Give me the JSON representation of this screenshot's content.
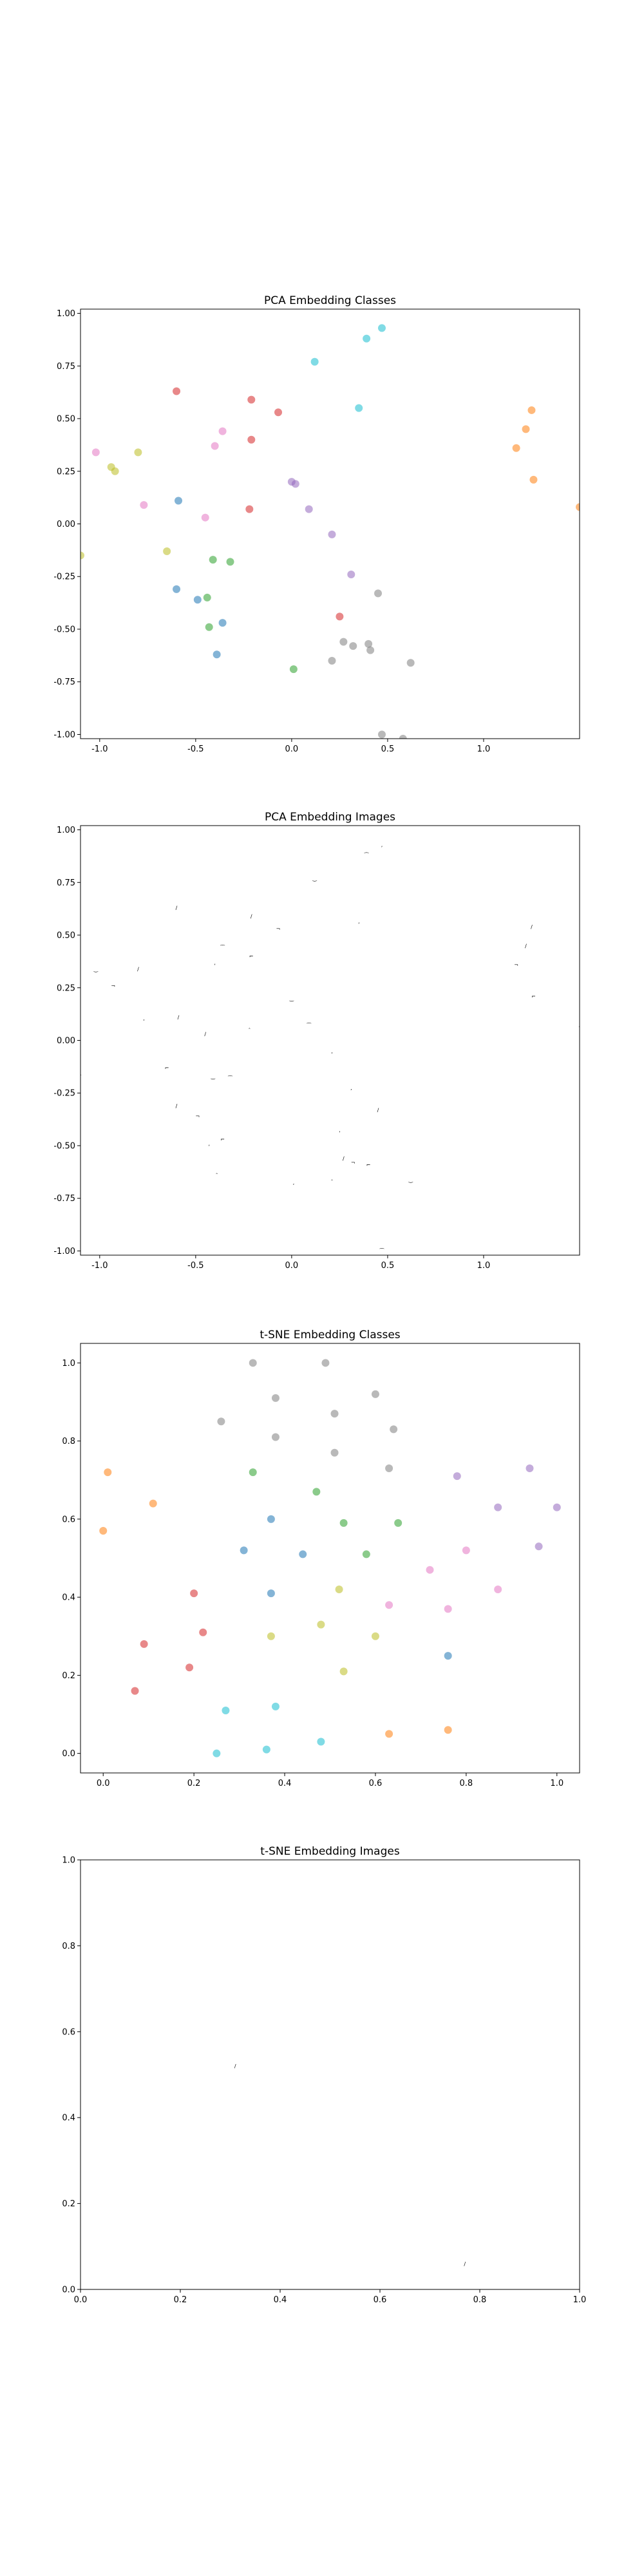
{
  "colors": {
    "c0": "#1f77b4",
    "c1": "#ff7f0e",
    "c2": "#2ca02c",
    "c3": "#d62728",
    "c4": "#9467bd",
    "c5": "#8c564b",
    "c6": "#e377c2",
    "c7": "#7f7f7f",
    "c8": "#bcbd22",
    "c9": "#17becf"
  },
  "chart_data": [
    {
      "type": "scatter",
      "title": "PCA Embedding Classes",
      "xlabel": "",
      "ylabel": "",
      "xlim": [
        -1.1,
        1.5
      ],
      "ylim": [
        -1.02,
        1.02
      ],
      "xticks": [
        "-1.0",
        "-0.5",
        "0.0",
        "0.5",
        "1.0"
      ],
      "xtick_values": [
        -1.0,
        -0.5,
        0.0,
        0.5,
        1.0
      ],
      "yticks": [
        "-1.00",
        "-0.75",
        "-0.50",
        "-0.25",
        "0.00",
        "0.25",
        "0.50",
        "0.75",
        "1.00"
      ],
      "ytick_values": [
        -1.0,
        -0.75,
        -0.5,
        -0.25,
        0.0,
        0.25,
        0.5,
        0.75,
        1.0
      ],
      "grid": false,
      "points": [
        {
          "x": -0.6,
          "y": 0.63,
          "c": "c3"
        },
        {
          "x": -0.21,
          "y": 0.59,
          "c": "c3"
        },
        {
          "x": -0.07,
          "y": 0.53,
          "c": "c3"
        },
        {
          "x": -0.21,
          "y": 0.4,
          "c": "c3"
        },
        {
          "x": -0.22,
          "y": 0.07,
          "c": "c3"
        },
        {
          "x": 0.12,
          "y": 0.77,
          "c": "c9"
        },
        {
          "x": 0.39,
          "y": 0.88,
          "c": "c9"
        },
        {
          "x": 0.47,
          "y": 0.93,
          "c": "c9"
        },
        {
          "x": 0.35,
          "y": 0.55,
          "c": "c9"
        },
        {
          "x": 1.25,
          "y": 0.54,
          "c": "c1"
        },
        {
          "x": 1.22,
          "y": 0.45,
          "c": "c1"
        },
        {
          "x": 1.17,
          "y": 0.36,
          "c": "c1"
        },
        {
          "x": 1.26,
          "y": 0.21,
          "c": "c1"
        },
        {
          "x": 1.5,
          "y": 0.08,
          "c": "c1"
        },
        {
          "x": -1.02,
          "y": 0.34,
          "c": "c6"
        },
        {
          "x": -0.36,
          "y": 0.44,
          "c": "c6"
        },
        {
          "x": -0.4,
          "y": 0.37,
          "c": "c6"
        },
        {
          "x": -0.77,
          "y": 0.09,
          "c": "c6"
        },
        {
          "x": -0.45,
          "y": 0.03,
          "c": "c6"
        },
        {
          "x": -0.8,
          "y": 0.34,
          "c": "c8"
        },
        {
          "x": -0.94,
          "y": 0.27,
          "c": "c8"
        },
        {
          "x": -0.92,
          "y": 0.25,
          "c": "c8"
        },
        {
          "x": -0.65,
          "y": -0.13,
          "c": "c8"
        },
        {
          "x": -1.1,
          "y": -0.15,
          "c": "c8"
        },
        {
          "x": 0.0,
          "y": 0.2,
          "c": "c4"
        },
        {
          "x": 0.02,
          "y": 0.19,
          "c": "c4"
        },
        {
          "x": 0.09,
          "y": 0.07,
          "c": "c4"
        },
        {
          "x": 0.21,
          "y": -0.05,
          "c": "c4"
        },
        {
          "x": 0.31,
          "y": -0.24,
          "c": "c4"
        },
        {
          "x": -0.59,
          "y": 0.11,
          "c": "c0"
        },
        {
          "x": -0.6,
          "y": -0.31,
          "c": "c0"
        },
        {
          "x": -0.49,
          "y": -0.36,
          "c": "c0"
        },
        {
          "x": -0.36,
          "y": -0.47,
          "c": "c0"
        },
        {
          "x": -0.39,
          "y": -0.62,
          "c": "c0"
        },
        {
          "x": -0.41,
          "y": -0.17,
          "c": "c2"
        },
        {
          "x": -0.32,
          "y": -0.18,
          "c": "c2"
        },
        {
          "x": -0.44,
          "y": -0.35,
          "c": "c2"
        },
        {
          "x": -0.43,
          "y": -0.49,
          "c": "c2"
        },
        {
          "x": 0.01,
          "y": -0.69,
          "c": "c2"
        },
        {
          "x": 0.45,
          "y": -0.33,
          "c": "c7"
        },
        {
          "x": 0.27,
          "y": -0.56,
          "c": "c7"
        },
        {
          "x": 0.32,
          "y": -0.58,
          "c": "c7"
        },
        {
          "x": 0.4,
          "y": -0.57,
          "c": "c7"
        },
        {
          "x": 0.41,
          "y": -0.6,
          "c": "c7"
        },
        {
          "x": 0.21,
          "y": -0.65,
          "c": "c7"
        },
        {
          "x": 0.62,
          "y": -0.66,
          "c": "c7"
        },
        {
          "x": 0.47,
          "y": -1.0,
          "c": "c7"
        },
        {
          "x": 0.58,
          "y": -1.02,
          "c": "c7"
        },
        {
          "x": 0.25,
          "y": -0.44,
          "c": "c3"
        }
      ]
    },
    {
      "type": "scatter",
      "title": "PCA Embedding Images",
      "xlabel": "",
      "ylabel": "",
      "xlim": [
        -1.1,
        1.5
      ],
      "ylim": [
        -1.02,
        1.02
      ],
      "xticks": [
        "-1.0",
        "-0.5",
        "0.0",
        "0.5",
        "1.0"
      ],
      "xtick_values": [
        -1.0,
        -0.5,
        0.0,
        0.5,
        1.0
      ],
      "yticks": [
        "-1.00",
        "-0.75",
        "-0.50",
        "-0.25",
        "0.00",
        "0.25",
        "0.50",
        "0.75",
        "1.00"
      ],
      "ytick_values": [
        -1.0,
        -0.75,
        -0.5,
        -0.25,
        0.0,
        0.25,
        0.5,
        0.75,
        1.0
      ],
      "grid": false,
      "points": [
        {
          "x": -0.6,
          "y": 0.63
        },
        {
          "x": -0.21,
          "y": 0.59
        },
        {
          "x": -0.07,
          "y": 0.53
        },
        {
          "x": -0.21,
          "y": 0.4
        },
        {
          "x": -0.22,
          "y": 0.07
        },
        {
          "x": 0.12,
          "y": 0.77
        },
        {
          "x": 0.39,
          "y": 0.88
        },
        {
          "x": 0.47,
          "y": 0.93
        },
        {
          "x": 0.35,
          "y": 0.55
        },
        {
          "x": 1.25,
          "y": 0.54
        },
        {
          "x": 1.22,
          "y": 0.45
        },
        {
          "x": 1.17,
          "y": 0.36
        },
        {
          "x": 1.26,
          "y": 0.21
        },
        {
          "x": 1.5,
          "y": 0.08
        },
        {
          "x": -1.02,
          "y": 0.34
        },
        {
          "x": -0.36,
          "y": 0.44
        },
        {
          "x": -0.4,
          "y": 0.37
        },
        {
          "x": -0.77,
          "y": 0.09
        },
        {
          "x": -0.45,
          "y": 0.03
        },
        {
          "x": -0.8,
          "y": 0.34
        },
        {
          "x": -0.93,
          "y": 0.26
        },
        {
          "x": -0.65,
          "y": -0.13
        },
        {
          "x": -1.1,
          "y": -0.15
        },
        {
          "x": 0.0,
          "y": 0.2
        },
        {
          "x": 0.09,
          "y": 0.07
        },
        {
          "x": 0.21,
          "y": -0.05
        },
        {
          "x": 0.31,
          "y": -0.24
        },
        {
          "x": -0.59,
          "y": 0.11
        },
        {
          "x": -0.6,
          "y": -0.31
        },
        {
          "x": -0.49,
          "y": -0.36
        },
        {
          "x": -0.36,
          "y": -0.47
        },
        {
          "x": -0.39,
          "y": -0.62
        },
        {
          "x": -0.41,
          "y": -0.17
        },
        {
          "x": -0.32,
          "y": -0.18
        },
        {
          "x": -0.43,
          "y": -0.49
        },
        {
          "x": 0.01,
          "y": -0.69
        },
        {
          "x": 0.45,
          "y": -0.33
        },
        {
          "x": 0.27,
          "y": -0.56
        },
        {
          "x": 0.32,
          "y": -0.58
        },
        {
          "x": 0.4,
          "y": -0.59
        },
        {
          "x": 0.21,
          "y": -0.65
        },
        {
          "x": 0.62,
          "y": -0.66
        },
        {
          "x": 0.47,
          "y": -1.0
        },
        {
          "x": 0.58,
          "y": -1.02
        },
        {
          "x": 0.25,
          "y": -0.44
        }
      ]
    },
    {
      "type": "scatter",
      "title": "t-SNE Embedding Classes",
      "xlabel": "",
      "ylabel": "",
      "xlim": [
        -0.05,
        1.05
      ],
      "ylim": [
        -0.05,
        1.05
      ],
      "xticks": [
        "0.0",
        "0.2",
        "0.4",
        "0.6",
        "0.8",
        "1.0"
      ],
      "xtick_values": [
        0.0,
        0.2,
        0.4,
        0.6,
        0.8,
        1.0
      ],
      "yticks": [
        "0.0",
        "0.2",
        "0.4",
        "0.6",
        "0.8",
        "1.0"
      ],
      "ytick_values": [
        0.0,
        0.2,
        0.4,
        0.6,
        0.8,
        1.0
      ],
      "grid": false,
      "points": [
        {
          "x": 0.33,
          "y": 1.0,
          "c": "c7"
        },
        {
          "x": 0.49,
          "y": 1.0,
          "c": "c7"
        },
        {
          "x": 0.38,
          "y": 0.91,
          "c": "c7"
        },
        {
          "x": 0.6,
          "y": 0.92,
          "c": "c7"
        },
        {
          "x": 0.26,
          "y": 0.85,
          "c": "c7"
        },
        {
          "x": 0.51,
          "y": 0.87,
          "c": "c7"
        },
        {
          "x": 0.38,
          "y": 0.81,
          "c": "c7"
        },
        {
          "x": 0.64,
          "y": 0.83,
          "c": "c7"
        },
        {
          "x": 0.51,
          "y": 0.77,
          "c": "c7"
        },
        {
          "x": 0.63,
          "y": 0.73,
          "c": "c7"
        },
        {
          "x": 0.01,
          "y": 0.72,
          "c": "c1"
        },
        {
          "x": 0.11,
          "y": 0.64,
          "c": "c1"
        },
        {
          "x": 0.0,
          "y": 0.57,
          "c": "c1"
        },
        {
          "x": 0.63,
          "y": 0.05,
          "c": "c1"
        },
        {
          "x": 0.76,
          "y": 0.06,
          "c": "c1"
        },
        {
          "x": 0.33,
          "y": 0.72,
          "c": "c2"
        },
        {
          "x": 0.47,
          "y": 0.67,
          "c": "c2"
        },
        {
          "x": 0.53,
          "y": 0.59,
          "c": "c2"
        },
        {
          "x": 0.65,
          "y": 0.59,
          "c": "c2"
        },
        {
          "x": 0.58,
          "y": 0.51,
          "c": "c2"
        },
        {
          "x": 0.78,
          "y": 0.71,
          "c": "c4"
        },
        {
          "x": 0.94,
          "y": 0.73,
          "c": "c4"
        },
        {
          "x": 0.87,
          "y": 0.63,
          "c": "c4"
        },
        {
          "x": 1.0,
          "y": 0.63,
          "c": "c4"
        },
        {
          "x": 0.96,
          "y": 0.53,
          "c": "c4"
        },
        {
          "x": 0.31,
          "y": 0.52,
          "c": "c0"
        },
        {
          "x": 0.37,
          "y": 0.6,
          "c": "c0"
        },
        {
          "x": 0.44,
          "y": 0.51,
          "c": "c0"
        },
        {
          "x": 0.37,
          "y": 0.41,
          "c": "c0"
        },
        {
          "x": 0.76,
          "y": 0.25,
          "c": "c0"
        },
        {
          "x": 0.8,
          "y": 0.52,
          "c": "c6"
        },
        {
          "x": 0.72,
          "y": 0.47,
          "c": "c6"
        },
        {
          "x": 0.63,
          "y": 0.38,
          "c": "c6"
        },
        {
          "x": 0.76,
          "y": 0.37,
          "c": "c6"
        },
        {
          "x": 0.87,
          "y": 0.42,
          "c": "c6"
        },
        {
          "x": 0.2,
          "y": 0.41,
          "c": "c3"
        },
        {
          "x": 0.22,
          "y": 0.31,
          "c": "c3"
        },
        {
          "x": 0.09,
          "y": 0.28,
          "c": "c3"
        },
        {
          "x": 0.19,
          "y": 0.22,
          "c": "c3"
        },
        {
          "x": 0.07,
          "y": 0.16,
          "c": "c3"
        },
        {
          "x": 0.52,
          "y": 0.42,
          "c": "c8"
        },
        {
          "x": 0.48,
          "y": 0.33,
          "c": "c8"
        },
        {
          "x": 0.37,
          "y": 0.3,
          "c": "c8"
        },
        {
          "x": 0.6,
          "y": 0.3,
          "c": "c8"
        },
        {
          "x": 0.53,
          "y": 0.21,
          "c": "c8"
        },
        {
          "x": 0.27,
          "y": 0.11,
          "c": "c9"
        },
        {
          "x": 0.38,
          "y": 0.12,
          "c": "c9"
        },
        {
          "x": 0.36,
          "y": 0.01,
          "c": "c9"
        },
        {
          "x": 0.48,
          "y": 0.03,
          "c": "c9"
        },
        {
          "x": 0.25,
          "y": 0.0,
          "c": "c9"
        }
      ]
    },
    {
      "type": "scatter",
      "title": "t-SNE Embedding Images",
      "xlabel": "",
      "ylabel": "",
      "xlim": [
        0.0,
        1.0
      ],
      "ylim": [
        0.0,
        1.0
      ],
      "xticks": [
        "0.0",
        "0.2",
        "0.4",
        "0.6",
        "0.8",
        "1.0"
      ],
      "xtick_values": [
        0.0,
        0.2,
        0.4,
        0.6,
        0.8,
        1.0
      ],
      "yticks": [
        "0.0",
        "0.2",
        "0.4",
        "0.6",
        "0.8",
        "1.0"
      ],
      "ytick_values": [
        0.0,
        0.2,
        0.4,
        0.6,
        0.8,
        1.0
      ],
      "grid": false,
      "points": [
        {
          "x": 0.31,
          "y": 0.52
        },
        {
          "x": 0.77,
          "y": 0.06
        }
      ]
    }
  ]
}
